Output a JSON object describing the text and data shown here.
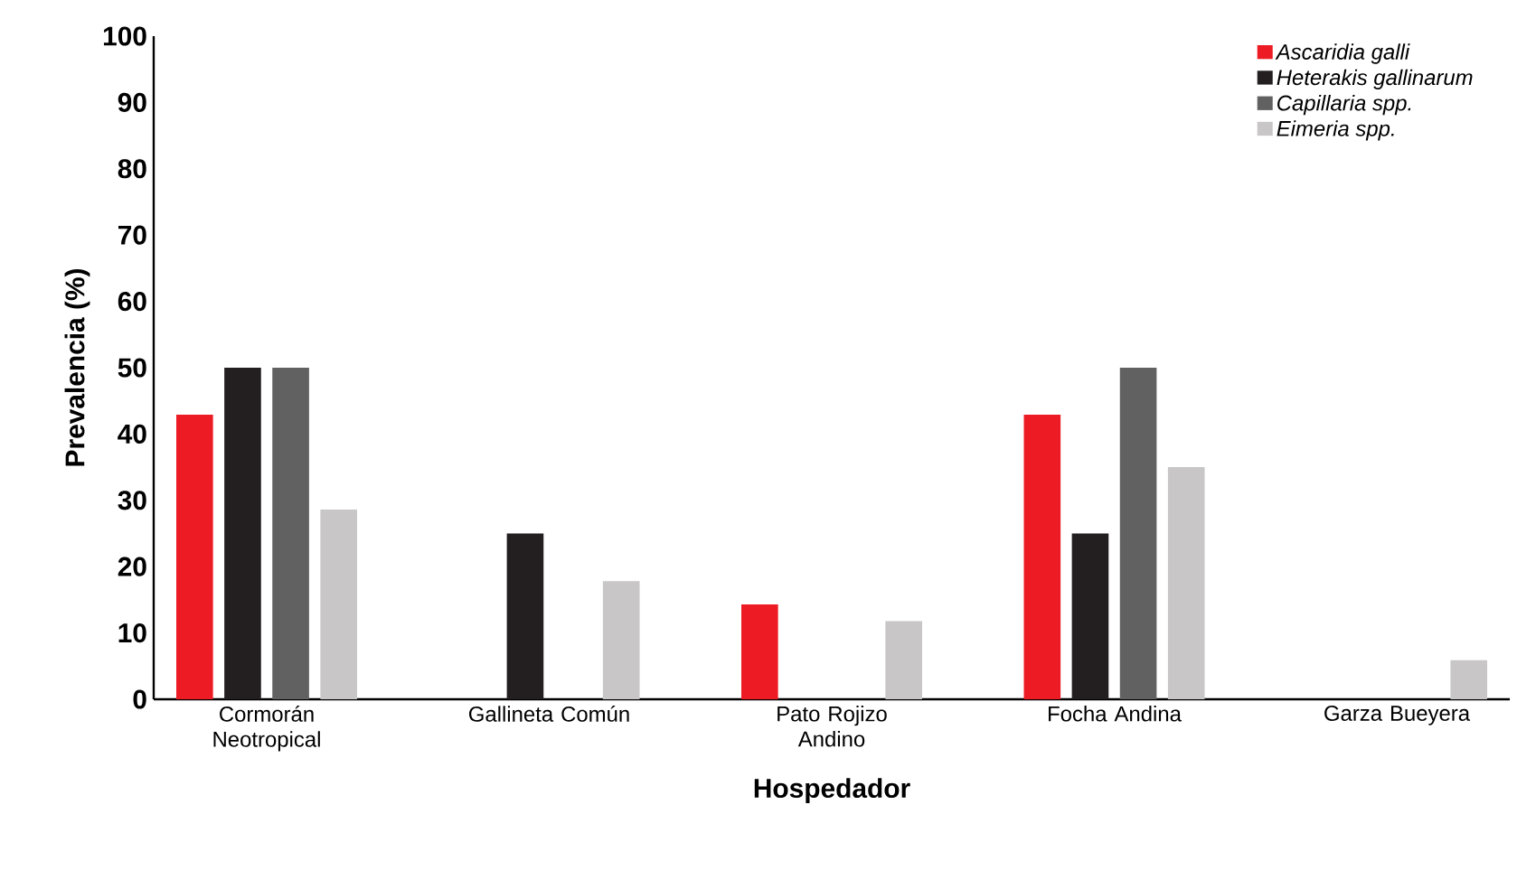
{
  "chart_data": {
    "type": "bar",
    "xlabel": "Hospedador",
    "ylabel": "Prevalencia (%)",
    "categories": [
      "Cormorán Neotropical",
      "Gallineta Común",
      "Pato Rojizo Andino",
      "Focha Andina",
      "Garza Bueyera"
    ],
    "series": [
      {
        "name": "*Ascaridia galli*",
        "color": "#ed1c24",
        "values": [
          42.9,
          null,
          14.3,
          42.9,
          null
        ]
      },
      {
        "name": "*Heterakis gallinarum*",
        "color": "#231f20",
        "values": [
          50,
          25,
          null,
          25,
          null
        ]
      },
      {
        "name": "*Capillaria spp.*",
        "color": "#616161",
        "values": [
          50,
          null,
          null,
          50,
          null
        ]
      },
      {
        "name": "*Eimeria spp.*",
        "color": "#c8c6c7",
        "values": [
          28.6,
          17.8,
          11.8,
          35,
          5.9
        ]
      }
    ],
    "ylim": [
      0,
      100
    ],
    "yticks": [
      0,
      10,
      20,
      30,
      40,
      50,
      60,
      70,
      80,
      90,
      100
    ],
    "grid": false,
    "legend": "top right"
  }
}
